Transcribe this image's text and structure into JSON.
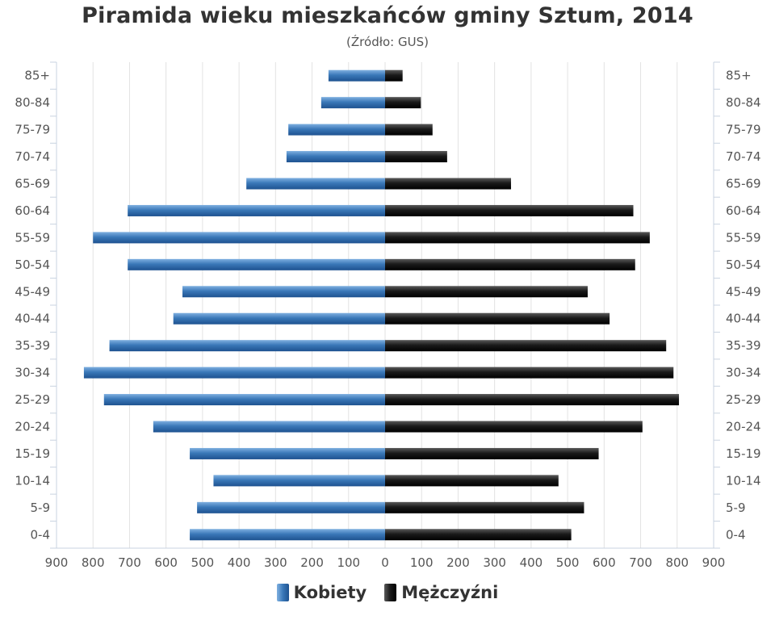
{
  "chart_data": {
    "type": "bar",
    "orientation": "horizontal-population-pyramid",
    "title": "Piramida wieku mieszkańców gminy Sztum, 2014",
    "subtitle": "(Źródło: GUS)",
    "categories": [
      "0-4",
      "5-9",
      "10-14",
      "15-19",
      "20-24",
      "25-29",
      "30-34",
      "35-39",
      "40-44",
      "45-49",
      "50-54",
      "55-59",
      "60-64",
      "65-69",
      "70-74",
      "75-79",
      "80-84",
      "85+"
    ],
    "series": [
      {
        "name": "Kobiety",
        "color": "#3a78b8",
        "values": [
          535,
          515,
          470,
          535,
          635,
          770,
          825,
          755,
          580,
          555,
          705,
          800,
          705,
          380,
          270,
          265,
          175,
          155
        ]
      },
      {
        "name": "Mężczyźni",
        "color": "#1a1a1a",
        "values": [
          510,
          545,
          475,
          585,
          705,
          805,
          790,
          770,
          615,
          555,
          685,
          725,
          680,
          345,
          170,
          130,
          98,
          48
        ]
      }
    ],
    "x_ticks": [
      900,
      800,
      700,
      600,
      500,
      400,
      300,
      200,
      100,
      0,
      100,
      200,
      300,
      400,
      500,
      600,
      700,
      800,
      900
    ],
    "xlim": [
      -900,
      900
    ],
    "grid": true,
    "legend_position": "bottom-center"
  }
}
